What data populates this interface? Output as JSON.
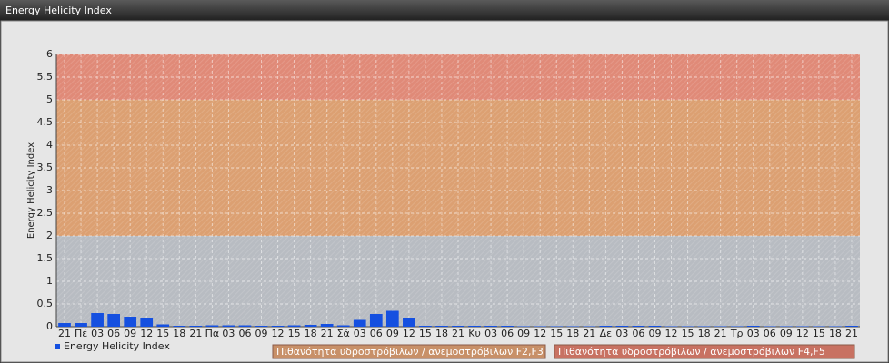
{
  "chart_data": {
    "type": "bar",
    "title": "Energy Helicity Index",
    "y_label": "Energy Helicity Index",
    "categories": [
      "21",
      "Πέ",
      "03",
      "06",
      "09",
      "12",
      "15",
      "18",
      "21",
      "Πα",
      "03",
      "06",
      "09",
      "12",
      "15",
      "18",
      "21",
      "Σά",
      "03",
      "06",
      "09",
      "12",
      "15",
      "18",
      "21",
      "Κυ",
      "03",
      "06",
      "09",
      "12",
      "15",
      "18",
      "21",
      "Δε",
      "03",
      "06",
      "09",
      "12",
      "15",
      "18",
      "21",
      "Τρ",
      "03",
      "06",
      "09",
      "12",
      "15",
      "18",
      "21"
    ],
    "series": [
      {
        "name": "Energy Helicity Index",
        "color": "#1550e0",
        "values": [
          0.08,
          0.08,
          0.3,
          0.28,
          0.22,
          0.2,
          0.05,
          0.02,
          0.02,
          0.03,
          0.03,
          0.03,
          0.02,
          0.02,
          0.03,
          0.04,
          0.06,
          0.03,
          0.15,
          0.28,
          0.35,
          0.2,
          0.02,
          0.02,
          0.02,
          0.02,
          0.02,
          0.02,
          0.01,
          0.01,
          0.01,
          0.01,
          0.01,
          0.02,
          0.02,
          0.02,
          0.02,
          0.01,
          0.01,
          0.01,
          0.01,
          0.01,
          0.02,
          0.01,
          0.01,
          0.01,
          0.01,
          0.01,
          0.02
        ]
      }
    ],
    "ylim": [
      0,
      6
    ],
    "yticks": [
      0,
      0.5,
      1,
      1.5,
      2,
      2.5,
      3,
      3.5,
      4,
      4.5,
      5,
      5.5,
      6
    ],
    "grid": true,
    "bands": [
      {
        "from": 0,
        "to": 2,
        "color": "#b8bcc2"
      },
      {
        "from": 2,
        "to": 5,
        "color": "#dca072",
        "label": "Πιθανότητα υδροστρόβιλων / ανεμοστρόβιλων F2,F3",
        "legend_color": "#c89068"
      },
      {
        "from": 5,
        "to": 6,
        "color": "#e08a78",
        "label": "Πιθανότητα υδροστρόβιλων / ανεμοστρόβιλων F4,F5",
        "legend_color": "#c87262"
      }
    ]
  }
}
